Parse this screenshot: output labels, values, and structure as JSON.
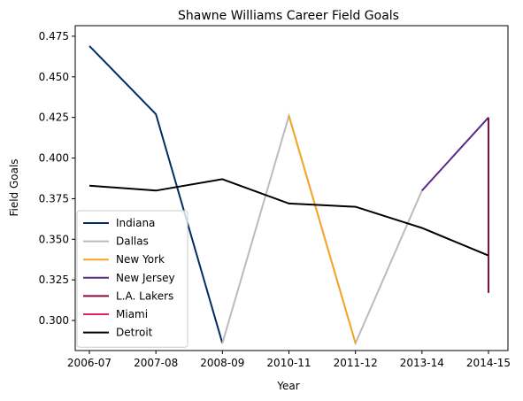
{
  "chart_data": {
    "type": "line",
    "title": "Shawne Williams Career Field Goals",
    "xlabel": "Year",
    "ylabel": "Field Goals",
    "categories": [
      "2006-07",
      "2007-08",
      "2008-09",
      "2010-11",
      "2011-12",
      "2013-14",
      "2014-15"
    ],
    "ylim": [
      0.2815,
      0.4815
    ],
    "yticks": [
      "0.300",
      "0.325",
      "0.350",
      "0.375",
      "0.400",
      "0.425",
      "0.450",
      "0.475"
    ],
    "ytick_values": [
      0.3,
      0.325,
      0.35,
      0.375,
      0.4,
      0.425,
      0.45,
      0.475
    ],
    "grid": false,
    "legend_position": "lower-left",
    "series": [
      {
        "name": "Indiana",
        "color": "#002D62",
        "points": [
          [
            "2006-07",
            0.469
          ],
          [
            "2007-08",
            0.427
          ],
          [
            "2008-09",
            0.286
          ]
        ]
      },
      {
        "name": "Dallas",
        "color": "#BBBBBB",
        "points": [
          [
            "2008-09",
            0.286
          ],
          [
            "2010-11",
            0.426
          ],
          [
            "2011-12",
            0.286
          ],
          [
            "2013-14",
            0.38
          ]
        ]
      },
      {
        "name": "New York",
        "color": "#F5A623",
        "points": [
          [
            "2010-11",
            0.426
          ],
          [
            "2011-12",
            0.286
          ]
        ]
      },
      {
        "name": "New Jersey",
        "color": "#5B2A86",
        "points": [
          [
            "2013-14",
            0.38
          ],
          [
            "2014-15",
            0.425
          ]
        ]
      },
      {
        "name": "L.A. Lakers",
        "color": "#8B0A3F",
        "points": [
          [
            "2014-15",
            0.425
          ],
          [
            "2014-15",
            0.317
          ]
        ]
      },
      {
        "name": "Miami",
        "color": "#E0245E",
        "points": []
      },
      {
        "name": "Detroit",
        "color": "#000000",
        "points": [
          [
            "2006-07",
            0.383
          ],
          [
            "2007-08",
            0.38
          ],
          [
            "2008-09",
            0.387
          ],
          [
            "2010-11",
            0.372
          ],
          [
            "2011-12",
            0.37
          ],
          [
            "2013-14",
            0.357
          ],
          [
            "2014-15",
            0.34
          ]
        ]
      }
    ]
  }
}
